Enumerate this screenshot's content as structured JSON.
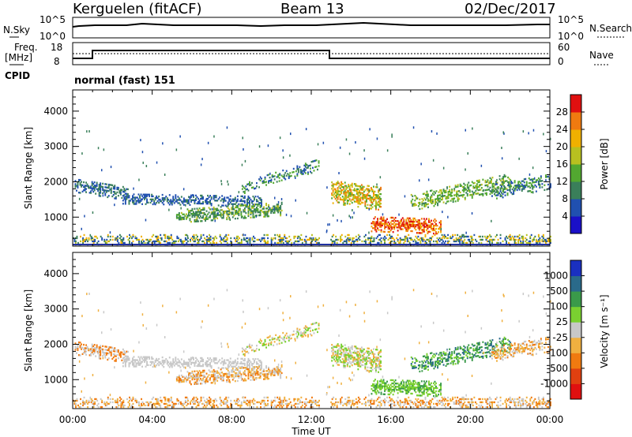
{
  "header": {
    "station": "Kerguelen (fitACF)",
    "beam": "Beam 13",
    "date": "02/Dec/2017"
  },
  "noise_panel": {
    "left_label": "N.Sky",
    "right_label": "N.Search",
    "left_ticks": [
      "10^5",
      "10^0"
    ],
    "right_ticks": [
      "10^5",
      "10^0"
    ]
  },
  "freq_panel": {
    "left_label_1": "Freq.",
    "left_label_2": "[MHz]",
    "left_ticks": [
      "18",
      "8"
    ],
    "right_ticks": [
      "60",
      "0"
    ],
    "right_label": "Nave",
    "cpid_label": "CPID",
    "cpid_text": "normal (fast) 151"
  },
  "chart_data": [
    {
      "type": "heatmap",
      "name": "power",
      "ylabel": "Slant Range [km]",
      "x_ticks": [
        "00:00",
        "04:00",
        "08:00",
        "12:00",
        "16:00",
        "20:00",
        "00:00"
      ],
      "y_ticks": [
        "1000",
        "2000",
        "3000",
        "4000"
      ],
      "ylim": [
        180,
        4600
      ],
      "colorbar": {
        "label": "Power [dB]",
        "ticks": [
          "4",
          "8",
          "12",
          "16",
          "20",
          "24",
          "28"
        ],
        "range": [
          0,
          32
        ],
        "colors": [
          "#1a10c8",
          "#2050b0",
          "#3a7f5a",
          "#52a830",
          "#b8c020",
          "#f0b000",
          "#f07a10",
          "#e01010"
        ]
      }
    },
    {
      "type": "heatmap",
      "name": "velocity",
      "ylabel": "Slant Range [km]",
      "xlabel": "Time UT",
      "x_ticks": [
        "00:00",
        "04:00",
        "08:00",
        "12:00",
        "16:00",
        "20:00",
        "00:00"
      ],
      "y_ticks": [
        "1000",
        "2000",
        "3000",
        "4000"
      ],
      "ylim": [
        180,
        4600
      ],
      "colorbar": {
        "label": "Velocity [m s⁻¹]",
        "ticks": [
          "1000",
          "500",
          "100",
          "25",
          "-25",
          "-100",
          "-500",
          "-1000"
        ],
        "colors": [
          "#1a30c0",
          "#2a6a8a",
          "#3a9a4a",
          "#7ad030",
          "#c8c8c8",
          "#f0b040",
          "#f07a10",
          "#e04010",
          "#e01010"
        ]
      }
    }
  ]
}
